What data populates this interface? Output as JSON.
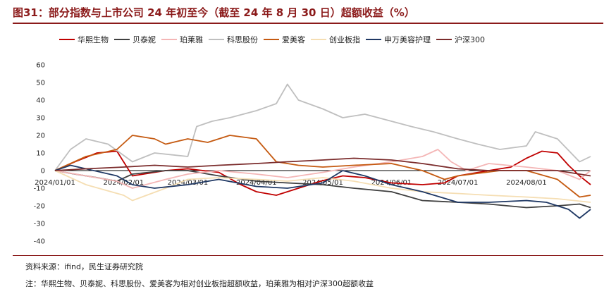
{
  "title": "图31：部分指数与上市公司 24 年初至今（截至 24 年 8 月 30 日）超额收益（%）",
  "source": "资料来源：ifind，民生证券研究院",
  "note": "注：华熙生物、贝泰妮、科思股份、爱美客为相对创业板指超额收益，珀莱雅为相对沪深300超额收益",
  "chart_data": {
    "type": "line",
    "title": "",
    "xlabel": "",
    "ylabel": "",
    "ylim": [
      -40,
      60
    ],
    "yticks": [
      -40,
      -30,
      -20,
      -10,
      0,
      10,
      20,
      30,
      40,
      50,
      60
    ],
    "x_range": [
      "2024-01-01",
      "2024-08-30"
    ],
    "xticks": [
      "2024/01/01",
      "2024/02/01",
      "2024/03/01",
      "2024/04/01",
      "2024/05/01",
      "2024/06/01",
      "2024/07/01",
      "2024/08/01"
    ],
    "grid": false,
    "legend": "top",
    "series": [
      {
        "name": "华熙生物",
        "color": "#c00000",
        "x": [
          "2024-01-01",
          "2024-01-10",
          "2024-01-20",
          "2024-01-29",
          "2024-02-05",
          "2024-02-20",
          "2024-03-01",
          "2024-03-15",
          "2024-03-25",
          "2024-04-01",
          "2024-04-10",
          "2024-04-20",
          "2024-04-30",
          "2024-05-10",
          "2024-05-20",
          "2024-06-01",
          "2024-06-15",
          "2024-06-25",
          "2024-07-01",
          "2024-07-15",
          "2024-07-25",
          "2024-08-01",
          "2024-08-08",
          "2024-08-15",
          "2024-08-20",
          "2024-08-25",
          "2024-08-30"
        ],
        "y": [
          0,
          5,
          10,
          11,
          -3,
          0,
          1,
          -1,
          -8,
          -12,
          -14,
          -10,
          -6,
          -3,
          -4,
          -7,
          -8,
          -7,
          -3,
          0,
          2,
          7,
          11,
          10,
          3,
          -3,
          -8
        ]
      },
      {
        "name": "贝泰妮",
        "color": "#404040",
        "x": [
          "2024-01-01",
          "2024-01-10",
          "2024-01-20",
          "2024-01-29",
          "2024-02-05",
          "2024-02-20",
          "2024-03-01",
          "2024-03-15",
          "2024-04-01",
          "2024-04-15",
          "2024-05-01",
          "2024-05-15",
          "2024-06-01",
          "2024-06-15",
          "2024-07-01",
          "2024-07-15",
          "2024-08-01",
          "2024-08-15",
          "2024-08-25",
          "2024-08-30"
        ],
        "y": [
          0,
          -2,
          -4,
          -6,
          -2,
          0,
          0,
          -3,
          -6,
          -7,
          -8,
          -10,
          -12,
          -17,
          -18,
          -19,
          -21,
          -20,
          -19,
          -21
        ]
      },
      {
        "name": "珀莱雅",
        "color": "#f4b6b6",
        "x": [
          "2024-01-01",
          "2024-01-15",
          "2024-01-29",
          "2024-02-05",
          "2024-02-20",
          "2024-03-01",
          "2024-03-15",
          "2024-04-01",
          "2024-04-15",
          "2024-05-01",
          "2024-05-15",
          "2024-06-01",
          "2024-06-15",
          "2024-06-22",
          "2024-06-28",
          "2024-07-05",
          "2024-07-15",
          "2024-08-01",
          "2024-08-15",
          "2024-08-25",
          "2024-08-30"
        ],
        "y": [
          0,
          -3,
          -6,
          -10,
          -5,
          -2,
          0,
          -2,
          -4,
          -1,
          2,
          5,
          8,
          12,
          5,
          0,
          4,
          2,
          0,
          -5,
          0
        ]
      },
      {
        "name": "科思股份",
        "color": "#bfbfbf",
        "x": [
          "2024-01-01",
          "2024-01-08",
          "2024-01-15",
          "2024-01-25",
          "2024-02-05",
          "2024-02-15",
          "2024-03-01",
          "2024-03-05",
          "2024-03-12",
          "2024-03-20",
          "2024-04-01",
          "2024-04-10",
          "2024-04-15",
          "2024-04-20",
          "2024-05-01",
          "2024-05-10",
          "2024-05-20",
          "2024-06-01",
          "2024-06-10",
          "2024-06-20",
          "2024-07-01",
          "2024-07-10",
          "2024-07-20",
          "2024-08-01",
          "2024-08-05",
          "2024-08-15",
          "2024-08-25",
          "2024-08-30"
        ],
        "y": [
          0,
          12,
          18,
          15,
          5,
          10,
          8,
          25,
          28,
          30,
          34,
          38,
          49,
          40,
          35,
          30,
          32,
          28,
          25,
          22,
          18,
          15,
          12,
          14,
          22,
          18,
          5,
          8
        ]
      },
      {
        "name": "爱美客",
        "color": "#c55a11",
        "x": [
          "2024-01-01",
          "2024-01-15",
          "2024-01-29",
          "2024-02-05",
          "2024-02-15",
          "2024-02-20",
          "2024-03-01",
          "2024-03-10",
          "2024-03-20",
          "2024-04-01",
          "2024-04-10",
          "2024-04-20",
          "2024-05-01",
          "2024-05-15",
          "2024-06-01",
          "2024-06-15",
          "2024-06-25",
          "2024-07-01",
          "2024-07-20",
          "2024-08-01",
          "2024-08-15",
          "2024-08-25",
          "2024-08-30"
        ],
        "y": [
          0,
          8,
          12,
          20,
          18,
          15,
          18,
          16,
          20,
          18,
          5,
          3,
          2,
          3,
          4,
          0,
          -5,
          -3,
          0,
          0,
          -5,
          -15,
          -14
        ]
      },
      {
        "name": "创业板指",
        "color": "#f5deb3",
        "x": [
          "2024-01-01",
          "2024-01-15",
          "2024-02-01",
          "2024-02-05",
          "2024-02-20",
          "2024-03-01",
          "2024-03-15",
          "2024-04-01",
          "2024-04-15",
          "2024-05-01",
          "2024-05-15",
          "2024-06-01",
          "2024-06-15",
          "2024-07-01",
          "2024-07-15",
          "2024-08-01",
          "2024-08-15",
          "2024-08-30"
        ],
        "y": [
          0,
          -8,
          -14,
          -17,
          -10,
          -5,
          -4,
          -5,
          -6,
          -4,
          -6,
          -10,
          -12,
          -13,
          -14,
          -15,
          -16,
          -18
        ]
      },
      {
        "name": "申万美容护理",
        "color": "#1f3864",
        "x": [
          "2024-01-01",
          "2024-01-08",
          "2024-01-15",
          "2024-01-29",
          "2024-02-05",
          "2024-02-15",
          "2024-03-01",
          "2024-03-15",
          "2024-04-01",
          "2024-04-15",
          "2024-05-01",
          "2024-05-10",
          "2024-05-20",
          "2024-06-01",
          "2024-06-15",
          "2024-07-01",
          "2024-07-15",
          "2024-08-01",
          "2024-08-10",
          "2024-08-20",
          "2024-08-25",
          "2024-08-30"
        ],
        "y": [
          0,
          3,
          1,
          -3,
          -8,
          -10,
          -8,
          -5,
          -9,
          -10,
          -7,
          0,
          -3,
          -8,
          -12,
          -18,
          -18,
          -17,
          -18,
          -22,
          -27,
          -22
        ]
      },
      {
        "name": "沪深300",
        "color": "#7b2c2c",
        "x": [
          "2024-01-01",
          "2024-01-15",
          "2024-02-01",
          "2024-02-15",
          "2024-03-01",
          "2024-03-15",
          "2024-04-01",
          "2024-04-15",
          "2024-05-01",
          "2024-05-15",
          "2024-06-01",
          "2024-06-15",
          "2024-07-01",
          "2024-07-15",
          "2024-08-01",
          "2024-08-15",
          "2024-08-30"
        ],
        "y": [
          0,
          1,
          2,
          3,
          2,
          3,
          4,
          5,
          6,
          7,
          6,
          4,
          1,
          0,
          0,
          0,
          -3
        ]
      }
    ]
  }
}
